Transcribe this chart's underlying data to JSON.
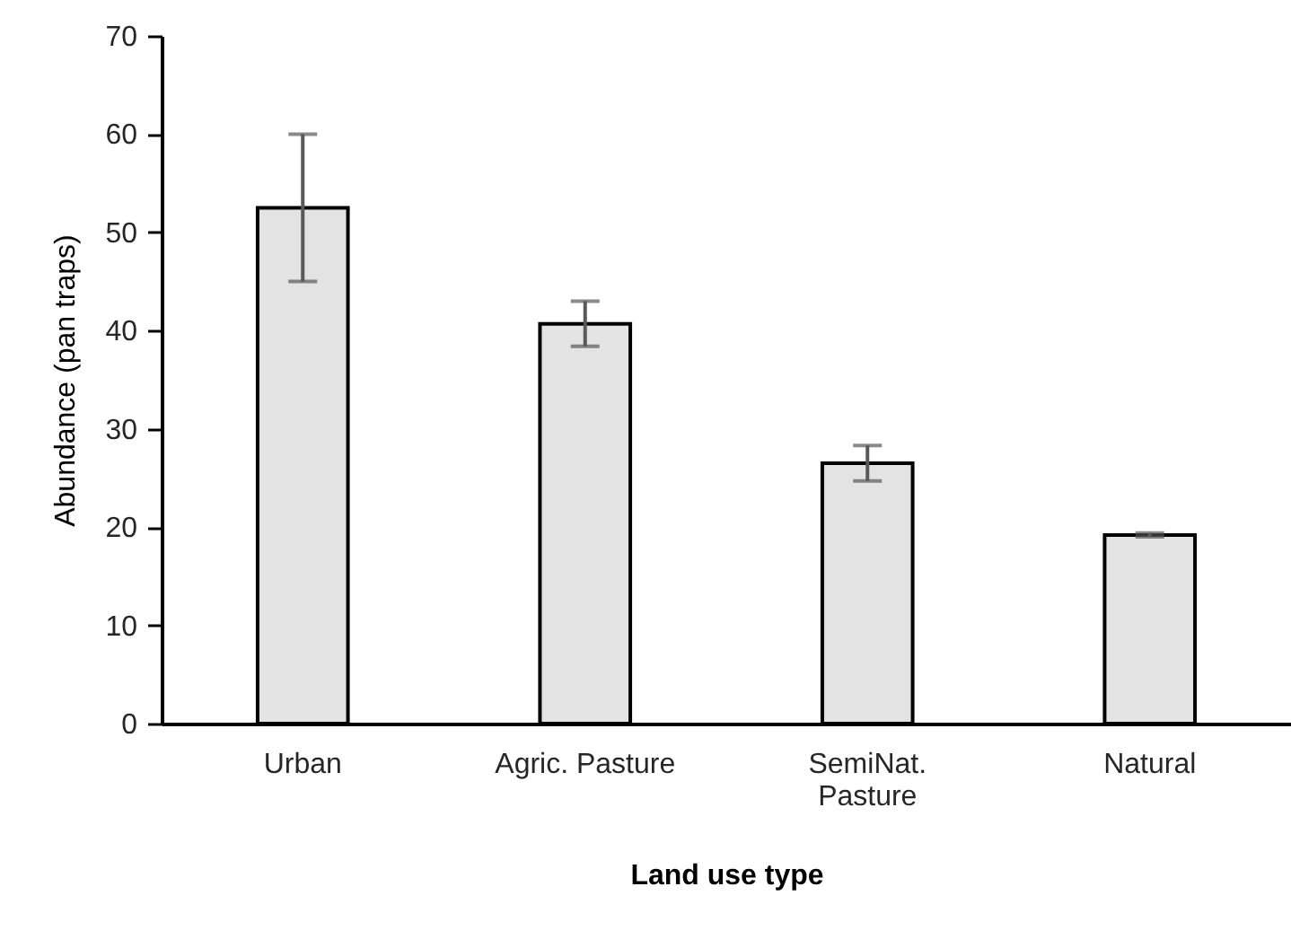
{
  "chart_data": {
    "type": "bar",
    "xlabel": "Land use type",
    "ylabel": "Abundance (pan traps)",
    "categories": [
      "Urban",
      "Agric. Pasture",
      "SemiNat. Pasture",
      "Natural"
    ],
    "values": [
      52.5,
      40.7,
      26.5,
      19.2
    ],
    "errors": [
      7.5,
      2.3,
      1.8,
      0.2
    ],
    "color": "#e3e3e3",
    "ylim": [
      0,
      70
    ],
    "yticks": [
      0,
      10,
      20,
      30,
      40,
      50,
      60,
      70
    ],
    "grid": false
  }
}
